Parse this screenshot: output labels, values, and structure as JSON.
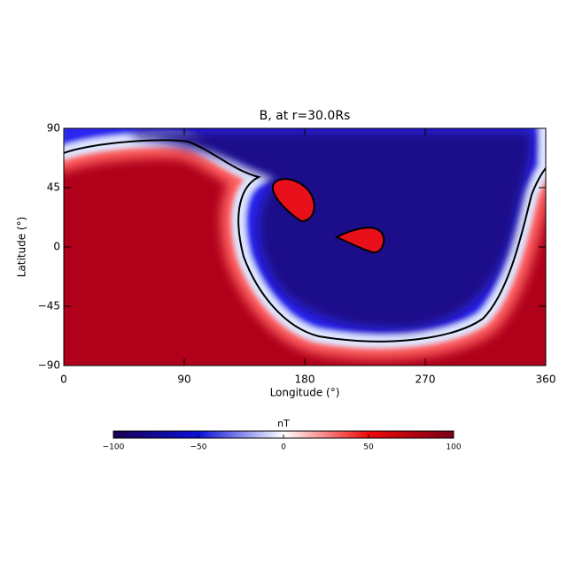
{
  "chart_data": {
    "type": "heatmap",
    "title": "B, at r=30.0Rs",
    "x_label": "Longitude (°)",
    "y_label": "Latitude (°)",
    "xlim": [
      0,
      360
    ],
    "ylim": [
      -90,
      90
    ],
    "xticks": [
      0,
      90,
      180,
      270,
      360
    ],
    "yticks": [
      {
        "value": -90,
        "label": "−90"
      },
      {
        "value": -45,
        "label": "−45"
      },
      0,
      45,
      90
    ],
    "colorbar": {
      "label": "nT",
      "lim": [
        -100,
        100
      ],
      "ticks": [
        {
          "value": -100,
          "label": "−100"
        },
        {
          "value": -50,
          "label": "−50"
        },
        0,
        50,
        100
      ]
    }
  }
}
